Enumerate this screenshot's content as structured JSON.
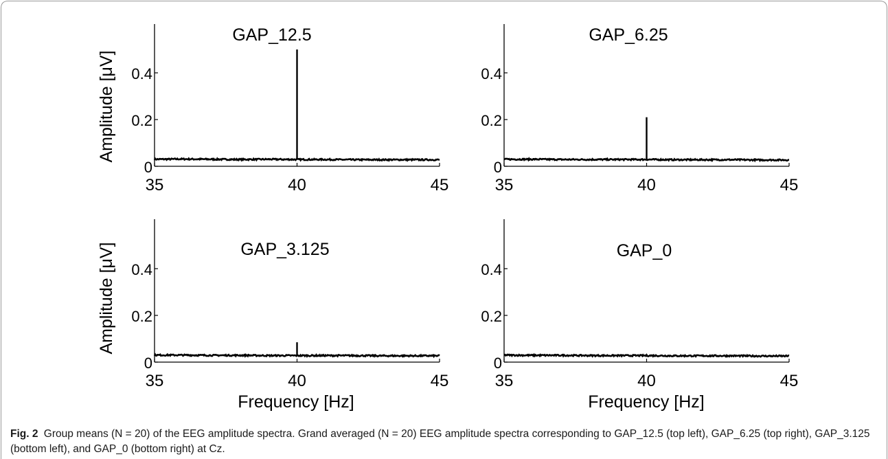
{
  "figure": {
    "fig_label": "Fig. 2",
    "caption": "Group means (N = 20) of the EEG amplitude spectra. Grand averaged (N = 20) EEG amplitude spectra corresponding to GAP_12.5 (top left), GAP_6.25 (top right), GAP_3.125 (bottom left), and GAP_0 (bottom right) at Cz.",
    "ylabel": "Amplitude [μV]",
    "xlabel": "Frequency [Hz]",
    "colors": {
      "trace": "#000000",
      "axis": "#000000",
      "frame": "#9a9a9a"
    }
  },
  "chart_data": [
    {
      "type": "line",
      "title": "GAP_12.5",
      "xlabel": "",
      "ylabel": "Amplitude [μV]",
      "xlim": [
        35,
        45
      ],
      "ylim": [
        0,
        0.58
      ],
      "xticks": [
        35,
        40,
        45
      ],
      "yticks": [
        0,
        0.2,
        0.4
      ],
      "ytick_labels": [
        "0",
        "0.2",
        "0.4"
      ],
      "grid": false,
      "baseline": [
        [
          35,
          0.03
        ],
        [
          36,
          0.031
        ],
        [
          37,
          0.03
        ],
        [
          38,
          0.029
        ],
        [
          39,
          0.03
        ],
        [
          40,
          0.029
        ],
        [
          41,
          0.029
        ],
        [
          42,
          0.028
        ],
        [
          43,
          0.028
        ],
        [
          44,
          0.028
        ],
        [
          45,
          0.028
        ]
      ],
      "peak": {
        "x": 40,
        "y": 0.5
      }
    },
    {
      "type": "line",
      "title": "GAP_6.25",
      "xlabel": "",
      "ylabel": "",
      "xlim": [
        35,
        45
      ],
      "ylim": [
        0,
        0.58
      ],
      "xticks": [
        35,
        40,
        45
      ],
      "yticks": [
        0,
        0.2,
        0.4
      ],
      "ytick_labels": [
        "0",
        "0.2",
        "0.4"
      ],
      "grid": false,
      "baseline": [
        [
          35,
          0.03
        ],
        [
          36,
          0.03
        ],
        [
          37,
          0.029
        ],
        [
          38,
          0.029
        ],
        [
          39,
          0.029
        ],
        [
          40,
          0.029
        ],
        [
          41,
          0.028
        ],
        [
          42,
          0.028
        ],
        [
          43,
          0.028
        ],
        [
          44,
          0.027
        ],
        [
          45,
          0.027
        ]
      ],
      "peak": {
        "x": 40,
        "y": 0.21
      }
    },
    {
      "type": "line",
      "title": "GAP_3.125",
      "xlabel": "Frequency [Hz]",
      "ylabel": "Amplitude [μV]",
      "xlim": [
        35,
        45
      ],
      "ylim": [
        0,
        0.58
      ],
      "xticks": [
        35,
        40,
        45
      ],
      "yticks": [
        0,
        0.2,
        0.4
      ],
      "ytick_labels": [
        "0",
        "0.2",
        "0.4"
      ],
      "grid": false,
      "baseline": [
        [
          35,
          0.03
        ],
        [
          36,
          0.03
        ],
        [
          37,
          0.029
        ],
        [
          38,
          0.029
        ],
        [
          39,
          0.028
        ],
        [
          40,
          0.028
        ],
        [
          41,
          0.028
        ],
        [
          42,
          0.028
        ],
        [
          43,
          0.027
        ],
        [
          44,
          0.027
        ],
        [
          45,
          0.027
        ]
      ],
      "peak": {
        "x": 40,
        "y": 0.085
      }
    },
    {
      "type": "line",
      "title": "GAP_0",
      "xlabel": "Frequency [Hz]",
      "ylabel": "",
      "xlim": [
        35,
        45
      ],
      "ylim": [
        0,
        0.58
      ],
      "xticks": [
        35,
        40,
        45
      ],
      "yticks": [
        0,
        0.2,
        0.4
      ],
      "ytick_labels": [
        "0",
        "0.2",
        "0.4"
      ],
      "grid": false,
      "baseline": [
        [
          35,
          0.03
        ],
        [
          36,
          0.029
        ],
        [
          37,
          0.029
        ],
        [
          38,
          0.028
        ],
        [
          39,
          0.028
        ],
        [
          40,
          0.028
        ],
        [
          41,
          0.027
        ],
        [
          42,
          0.027
        ],
        [
          43,
          0.027
        ],
        [
          44,
          0.026
        ],
        [
          45,
          0.026
        ]
      ],
      "peak": null
    }
  ]
}
